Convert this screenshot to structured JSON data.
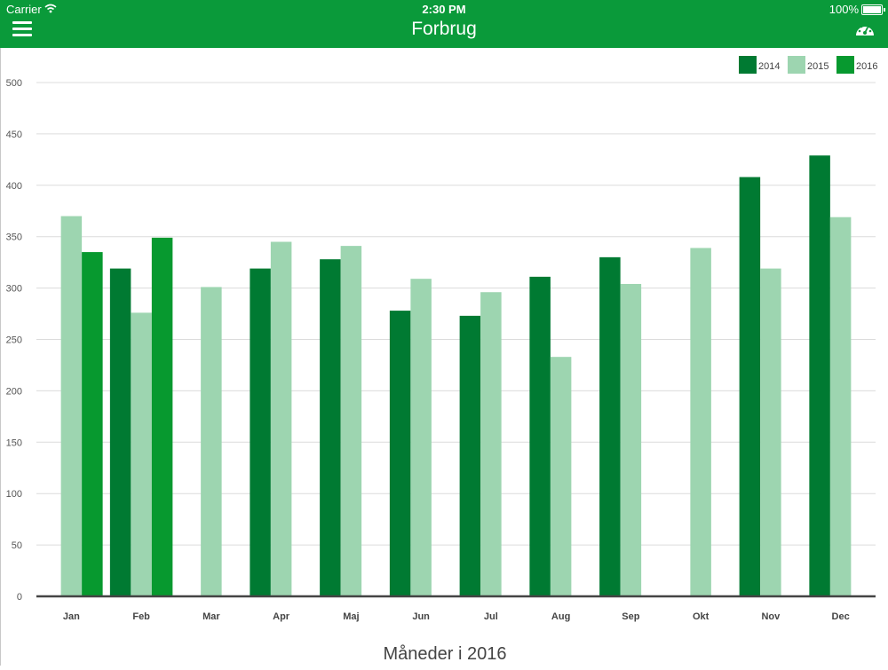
{
  "status_bar": {
    "carrier": "Carrier",
    "time": "2:30 PM",
    "battery": "100%"
  },
  "nav": {
    "title": "Forbrug",
    "menu_icon": "menu-icon",
    "dashboard_icon": "gauge-icon"
  },
  "colors": {
    "header": "#0a9a3a",
    "series_2014": "#007a32",
    "series_2015": "#9dd5b0",
    "series_2016": "#07992f"
  },
  "chart_data": {
    "type": "bar",
    "title": "Forbrug",
    "xlabel": "Måneder i 2016",
    "ylabel": "",
    "ylim": [
      0,
      500
    ],
    "yticks": [
      0,
      50,
      100,
      150,
      200,
      250,
      300,
      350,
      400,
      450,
      500
    ],
    "grid": true,
    "legend_position": "top-right",
    "categories": [
      "Jan",
      "Feb",
      "Mar",
      "Apr",
      "Maj",
      "Jun",
      "Jul",
      "Aug",
      "Sep",
      "Okt",
      "Nov",
      "Dec"
    ],
    "series": [
      {
        "name": "2014",
        "color": "#007a32",
        "values": [
          null,
          319,
          null,
          319,
          328,
          278,
          273,
          311,
          330,
          null,
          408,
          429
        ]
      },
      {
        "name": "2015",
        "color": "#9dd5b0",
        "values": [
          370,
          276,
          301,
          345,
          341,
          309,
          296,
          233,
          304,
          339,
          319,
          369
        ]
      },
      {
        "name": "2016",
        "color": "#07992f",
        "values": [
          335,
          349,
          null,
          null,
          null,
          null,
          null,
          null,
          null,
          null,
          null,
          null
        ]
      }
    ]
  }
}
